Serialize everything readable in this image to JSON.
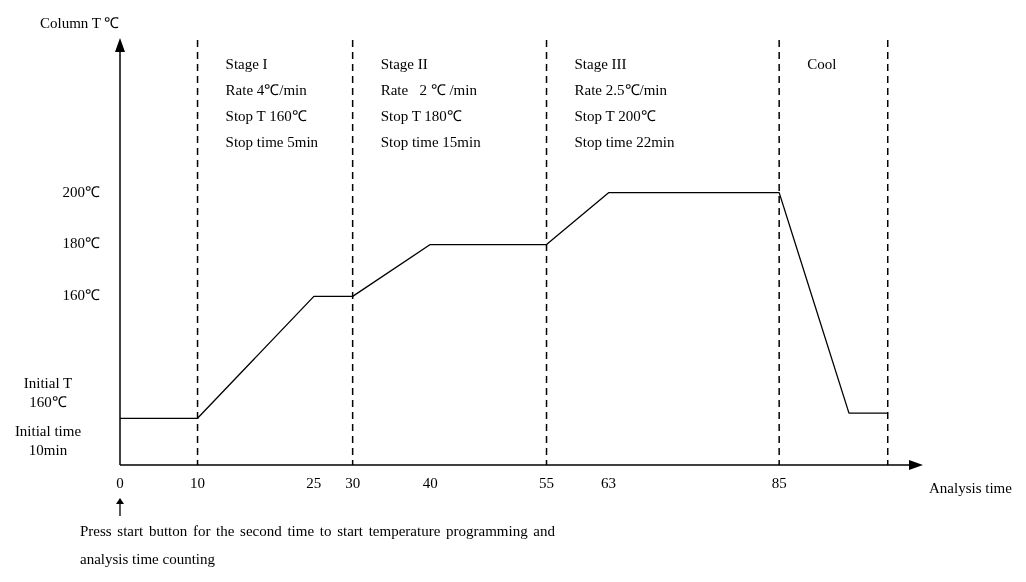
{
  "chart_data": {
    "type": "line",
    "xlabel": "Analysis time",
    "ylabel": "Column T ℃",
    "x": [
      0,
      10,
      25,
      30,
      40,
      55,
      63,
      85,
      94,
      99
    ],
    "series": [
      {
        "color": "#000000",
        "values": [
          113,
          113,
          160,
          160,
          180,
          180,
          200,
          200,
          115,
          115
        ]
      }
    ],
    "xlim": [
      0,
      102
    ],
    "xticks": [
      0,
      10,
      25,
      30,
      40,
      55,
      63,
      85
    ],
    "ylim": [
      95,
      255
    ],
    "yticks": [
      {
        "value": 160,
        "label": "160℃"
      },
      {
        "value": 180,
        "label": "180℃"
      },
      {
        "value": 200,
        "label": "200℃"
      }
    ],
    "ref_lines": [
      {
        "axis": "x",
        "value": 10,
        "label": "Stage I\nRate 4℃/min\nStop T 160℃\nStop time 5min",
        "line_style": "dashed"
      },
      {
        "axis": "x",
        "value": 30,
        "label": "Stage II\nRate   2 ℃ /min\nStop T 180℃\nStop time 15min",
        "line_style": "dashed"
      },
      {
        "axis": "x",
        "value": 55,
        "label": "Stage III\nRate 2.5℃/min\nStop T 200℃\nStop time 22min",
        "line_style": "dashed"
      },
      {
        "axis": "x",
        "value": 85,
        "label": "Cool",
        "line_style": "dashed"
      },
      {
        "axis": "x",
        "value": 99,
        "line_style": "dashed"
      }
    ],
    "annotations": [
      "Initial T 160℃",
      "Initial time 10min",
      "Press start button for the second time to start temperature programming and analysis time counting"
    ],
    "grid": false,
    "legend": false,
    "marker": "none",
    "line_style": "solid"
  }
}
